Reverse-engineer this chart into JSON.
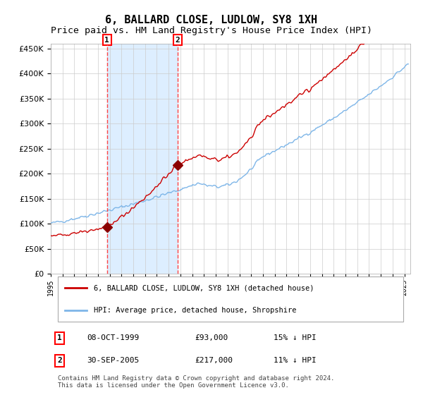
{
  "title": "6, BALLARD CLOSE, LUDLOW, SY8 1XH",
  "subtitle": "Price paid vs. HM Land Registry's House Price Index (HPI)",
  "title_fontsize": 11,
  "subtitle_fontsize": 9.5,
  "background_color": "#ffffff",
  "plot_bg_color": "#ffffff",
  "grid_color": "#cccccc",
  "hpi_line_color": "#7EB6E8",
  "property_line_color": "#cc0000",
  "shade_color": "#ddeeff",
  "dashed_line_color": "#ff4444",
  "marker_color": "#8B0000",
  "transaction1_x": 1999.77,
  "transaction1_y": 93000,
  "transaction1_label": "1",
  "transaction2_x": 2005.75,
  "transaction2_y": 217000,
  "transaction2_label": "2",
  "legend_label_property": "6, BALLARD CLOSE, LUDLOW, SY8 1XH (detached house)",
  "legend_label_hpi": "HPI: Average price, detached house, Shropshire",
  "table_row1": [
    "1",
    "08-OCT-1999",
    "£93,000",
    "15% ↓ HPI"
  ],
  "table_row2": [
    "2",
    "30-SEP-2005",
    "£217,000",
    "11% ↓ HPI"
  ],
  "footer": "Contains HM Land Registry data © Crown copyright and database right 2024.\nThis data is licensed under the Open Government Licence v3.0.",
  "ylim": [
    0,
    460000
  ],
  "yticks": [
    0,
    50000,
    100000,
    150000,
    200000,
    250000,
    300000,
    350000,
    400000,
    450000
  ],
  "xlim_start": 1995.0,
  "xlim_end": 2025.5
}
